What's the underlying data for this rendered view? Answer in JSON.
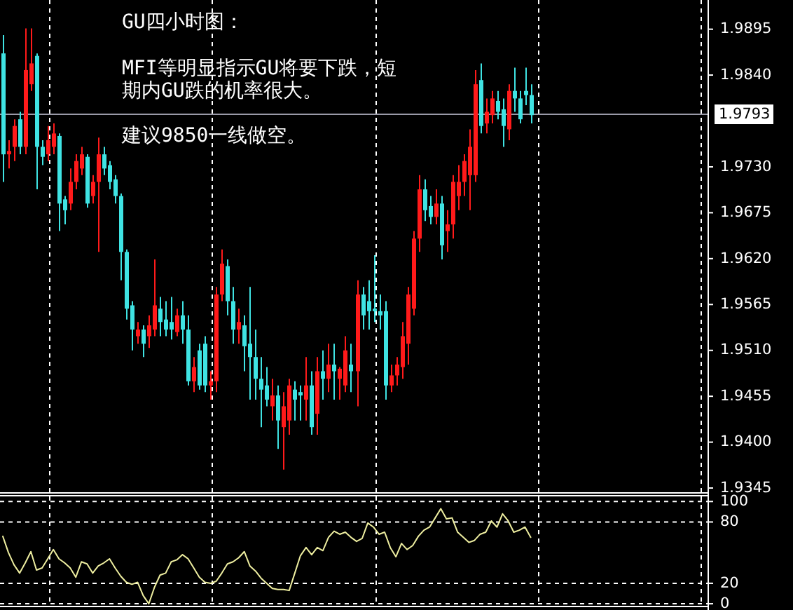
{
  "chart_data": [
    {
      "type": "candlestick",
      "annotations": [
        "GU四小时图：",
        "MFI等明显指示GU将要下跌，短期内GU跌的机率很大。",
        "建议9850一线做空。"
      ],
      "categories": [
        null,
        null,
        null,
        null,
        null,
        null,
        null,
        null,
        null,
        null,
        null,
        null,
        null,
        null,
        null,
        null,
        null,
        null,
        null,
        null,
        null,
        null,
        null,
        null,
        null,
        null,
        null,
        null,
        null,
        null,
        null,
        null,
        null,
        null,
        null,
        null,
        null,
        null,
        null,
        null,
        null,
        null,
        null,
        null,
        null,
        null,
        null,
        null,
        null,
        null,
        null,
        null,
        null,
        null,
        null,
        null,
        null,
        null,
        null,
        null,
        null,
        null,
        null,
        null,
        null,
        null,
        null,
        null,
        null,
        null,
        null,
        null,
        null,
        null,
        null,
        null,
        null,
        null,
        null,
        null,
        null,
        null,
        null,
        null,
        null,
        null,
        null,
        null,
        null,
        null,
        null,
        null,
        null,
        null,
        null,
        null,
        null,
        null,
        null,
        null,
        null,
        null,
        null,
        null,
        null,
        null,
        null,
        null,
        null,
        null,
        null,
        null,
        null,
        null,
        null,
        null,
        null,
        null,
        null,
        null,
        null,
        null,
        null,
        null,
        null,
        null
      ],
      "ohlc": [
        [
          1.9866,
          1.9888,
          1.9712,
          1.9745
        ],
        [
          1.9745,
          1.9762,
          1.9728,
          1.9749
        ],
        [
          1.9754,
          1.9787,
          1.9737,
          1.9779
        ],
        [
          1.9787,
          1.9796,
          1.9745,
          1.9754
        ],
        [
          1.9754,
          1.9896,
          1.9745,
          1.9846
        ],
        [
          1.9829,
          1.9896,
          1.9821,
          1.9854
        ],
        [
          1.9863,
          1.9866,
          1.9703,
          1.9754
        ],
        [
          1.9754,
          1.9762,
          1.9732,
          1.9742
        ],
        [
          1.9745,
          1.9779,
          1.9737,
          1.9762
        ],
        [
          1.9754,
          1.9782,
          1.9745,
          1.977
        ],
        [
          1.9767,
          1.977,
          1.9653,
          1.9686
        ],
        [
          1.9691,
          1.9695,
          1.9661,
          1.9678
        ],
        [
          1.9686,
          1.9728,
          1.9678,
          1.9712
        ],
        [
          1.9712,
          1.9745,
          1.9703,
          1.9737
        ],
        [
          1.9728,
          1.9754,
          1.972,
          1.9745
        ],
        [
          1.9742,
          1.9745,
          1.9681,
          1.9686
        ],
        [
          1.9695,
          1.972,
          1.9686,
          1.9712
        ],
        [
          1.9712,
          1.9765,
          1.9628,
          1.9745
        ],
        [
          1.9745,
          1.9754,
          1.972,
          1.9728
        ],
        [
          1.9732,
          1.9737,
          1.9703,
          1.9712
        ],
        [
          1.9715,
          1.972,
          1.9686,
          1.9695
        ],
        [
          1.9695,
          1.9698,
          1.9594,
          1.9628
        ],
        [
          1.9628,
          1.9631,
          1.9547,
          1.956
        ],
        [
          1.9564,
          1.9569,
          1.951,
          1.9535
        ],
        [
          1.9527,
          1.9544,
          1.9518,
          1.9535
        ],
        [
          1.9535,
          1.954,
          1.9502,
          1.9518
        ],
        [
          1.9527,
          1.9552,
          1.9513,
          1.954
        ],
        [
          1.9535,
          1.9619,
          1.9527,
          1.9564
        ],
        [
          1.956,
          1.9574,
          1.9527,
          1.9544
        ],
        [
          1.9547,
          1.9569,
          1.9527,
          1.9535
        ],
        [
          1.9544,
          1.9574,
          1.9523,
          1.9535
        ],
        [
          1.9532,
          1.956,
          1.9527,
          1.9552
        ],
        [
          1.9552,
          1.9569,
          1.9518,
          1.9535
        ],
        [
          1.9535,
          1.9552,
          1.9468,
          1.9473
        ],
        [
          1.9473,
          1.9502,
          1.946,
          1.949
        ],
        [
          1.951,
          1.9518,
          1.9463,
          1.9468
        ],
        [
          1.9518,
          1.9527,
          1.946,
          1.9468
        ],
        [
          1.9468,
          1.9485,
          1.9451,
          1.9473
        ],
        [
          1.9473,
          1.9586,
          1.946,
          1.9577
        ],
        [
          1.9577,
          1.9631,
          1.9569,
          1.9614
        ],
        [
          1.9611,
          1.9619,
          1.9552,
          1.9569
        ],
        [
          1.9569,
          1.9586,
          1.9518,
          1.9535
        ],
        [
          1.9535,
          1.956,
          1.9518,
          1.9544
        ],
        [
          1.954,
          1.9552,
          1.9485,
          1.9515
        ],
        [
          1.9518,
          1.9586,
          1.9451,
          1.9502
        ],
        [
          1.9502,
          1.9535,
          1.9451,
          1.9476
        ],
        [
          1.9476,
          1.9502,
          1.9418,
          1.9463
        ],
        [
          1.9468,
          1.949,
          1.9443,
          1.9451
        ],
        [
          1.9443,
          1.9476,
          1.9426,
          1.9456
        ],
        [
          1.9456,
          1.9468,
          1.9392,
          1.9426
        ],
        [
          1.9418,
          1.946,
          1.9367,
          1.9443
        ],
        [
          1.9426,
          1.9476,
          1.9409,
          1.9468
        ],
        [
          1.9463,
          1.9473,
          1.9426,
          1.9451
        ],
        [
          1.946,
          1.9468,
          1.9426,
          1.9456
        ],
        [
          1.9451,
          1.9502,
          1.9426,
          1.9468
        ],
        [
          1.9468,
          1.9485,
          1.9409,
          1.9418
        ],
        [
          1.9434,
          1.9502,
          1.9409,
          1.9485
        ],
        [
          1.9485,
          1.951,
          1.9451,
          1.9476
        ],
        [
          1.9476,
          1.9518,
          1.946,
          1.9493
        ],
        [
          1.9493,
          1.9518,
          1.9451,
          1.9485
        ],
        [
          1.9476,
          1.949,
          1.9451,
          1.9488
        ],
        [
          1.9468,
          1.9527,
          1.946,
          1.951
        ],
        [
          1.9493,
          1.9518,
          1.946,
          1.9485
        ],
        [
          1.9485,
          1.9594,
          1.9443,
          1.9577
        ],
        [
          1.9577,
          1.9586,
          1.9535,
          1.9552
        ],
        [
          1.9569,
          1.9594,
          1.9535,
          1.9557
        ],
        [
          1.956,
          1.9624,
          1.9544,
          1.9557
        ],
        [
          1.9557,
          1.9577,
          1.9535,
          1.9552
        ],
        [
          1.9557,
          1.9569,
          1.9451,
          1.9468
        ],
        [
          1.9468,
          1.9493,
          1.946,
          1.948
        ],
        [
          1.948,
          1.9502,
          1.9468,
          1.9493
        ],
        [
          1.949,
          1.9544,
          1.9476,
          1.9527
        ],
        [
          1.9518,
          1.9586,
          1.9493,
          1.9577
        ],
        [
          1.956,
          1.9653,
          1.9552,
          1.9644
        ],
        [
          1.9644,
          1.972,
          1.9628,
          1.9703
        ],
        [
          1.9703,
          1.9715,
          1.9665,
          1.9678
        ],
        [
          1.9683,
          1.9695,
          1.9661,
          1.967
        ],
        [
          1.967,
          1.9703,
          1.9661,
          1.9686
        ],
        [
          1.9686,
          1.9695,
          1.9619,
          1.9636
        ],
        [
          1.9653,
          1.9678,
          1.9628,
          1.9661
        ],
        [
          1.9661,
          1.972,
          1.9644,
          1.9712
        ],
        [
          1.9695,
          1.9732,
          1.9678,
          1.9712
        ],
        [
          1.9712,
          1.9745,
          1.9695,
          1.9737
        ],
        [
          1.972,
          1.9775,
          1.9678,
          1.9754
        ],
        [
          1.972,
          1.9846,
          1.9712,
          1.9829
        ],
        [
          1.9834,
          1.9854,
          1.977,
          1.9779
        ],
        [
          1.9782,
          1.9812,
          1.977,
          1.9796
        ],
        [
          1.9792,
          1.9821,
          1.9782,
          1.9812
        ],
        [
          1.9809,
          1.9821,
          1.9787,
          1.9796
        ],
        [
          1.9799,
          1.9812,
          1.9754,
          1.9779
        ],
        [
          1.9775,
          1.9829,
          1.9762,
          1.9821
        ],
        [
          1.9821,
          1.9849,
          1.9796,
          1.9812
        ],
        [
          1.9812,
          1.9821,
          1.9782,
          1.9787
        ],
        [
          1.9821,
          1.9849,
          1.9804,
          1.9816
        ],
        [
          1.9816,
          1.9829,
          1.9782,
          1.9792
        ],
        null,
        null,
        null,
        null,
        null,
        null,
        null,
        null,
        null,
        null,
        null,
        null,
        null,
        null,
        null,
        null,
        null,
        null,
        null,
        null,
        null,
        null,
        null,
        null,
        null,
        null,
        null,
        null,
        null,
        null,
        null
      ],
      "ylim": [
        1.934,
        1.993
      ],
      "yticks": [
        1.9345,
        {
          "value": 1.94,
          "label": "1.9400"
        },
        1.9455,
        {
          "value": 1.951,
          "label": "1.9510"
        },
        1.9565,
        {
          "value": 1.962,
          "label": "1.9620"
        },
        1.9675,
        {
          "value": 1.973,
          "label": "1.9730"
        },
        {
          "value": 1.984,
          "label": "1.9840"
        },
        1.9895
      ],
      "grid": "x",
      "tick_labels": "y",
      "ref_lines": [
        {
          "axis": "y",
          "value": 1.9793,
          "label": "1.9793",
          "color": "#9a9aa8"
        }
      ]
    },
    {
      "type": "line",
      "categories": [
        null,
        null,
        null,
        null,
        null,
        null,
        null,
        null,
        null,
        null,
        null,
        null,
        null,
        null,
        null,
        null,
        null,
        null,
        null,
        null,
        null,
        null,
        null,
        null,
        null,
        null,
        null,
        null,
        null,
        null,
        null,
        null,
        null,
        null,
        null,
        null,
        null,
        null,
        null,
        null,
        null,
        null,
        null,
        null,
        null,
        null,
        null,
        null,
        null,
        null,
        null,
        null,
        null,
        null,
        null,
        null,
        null,
        null,
        null,
        null,
        null,
        null,
        null,
        null,
        null,
        null,
        null,
        null,
        null,
        null,
        null,
        null,
        null,
        null,
        null,
        null,
        null,
        null,
        null,
        null,
        null,
        null,
        null,
        null,
        null,
        null,
        null,
        null,
        null,
        null,
        null,
        null,
        null,
        null,
        null,
        null,
        null,
        null,
        null,
        null,
        null,
        null,
        null,
        null,
        null,
        null,
        null,
        null,
        null,
        null,
        null,
        null,
        null,
        null,
        null,
        null,
        null,
        null,
        null,
        null,
        null,
        null,
        null,
        null,
        null,
        null
      ],
      "series": [
        {
          "color": "#eeeea0",
          "values": [
            66,
            50,
            38,
            30,
            40,
            51,
            33,
            35,
            44,
            53,
            44,
            40,
            35,
            26,
            41,
            39,
            30,
            37,
            40,
            44,
            35,
            27,
            21,
            19,
            21,
            8,
            0,
            16,
            28,
            30,
            41,
            43,
            48,
            44,
            35,
            26,
            21,
            20,
            22,
            30,
            39,
            41,
            45,
            51,
            37,
            32,
            25,
            20,
            15,
            14,
            14,
            13,
            30,
            47,
            55,
            48,
            55,
            52,
            65,
            71,
            68,
            70,
            65,
            61,
            64,
            79,
            75,
            68,
            70,
            55,
            46,
            59,
            53,
            57,
            66,
            72,
            75,
            84,
            93,
            83,
            84,
            70,
            65,
            60,
            62,
            68,
            70,
            81,
            75,
            88,
            81,
            70,
            72,
            75,
            65,
            null,
            null,
            null,
            null,
            null,
            null,
            null,
            null,
            null,
            null,
            null,
            null,
            null,
            null,
            null,
            null,
            null,
            null,
            null,
            null,
            null,
            null,
            null,
            null,
            null,
            null,
            null,
            null,
            null,
            null,
            null
          ]
        }
      ],
      "ylim": [
        -2,
        105
      ],
      "yticks": [
        0,
        20,
        80,
        100
      ],
      "grid": true,
      "tick_labels": "y",
      "line_style": "solid"
    }
  ]
}
